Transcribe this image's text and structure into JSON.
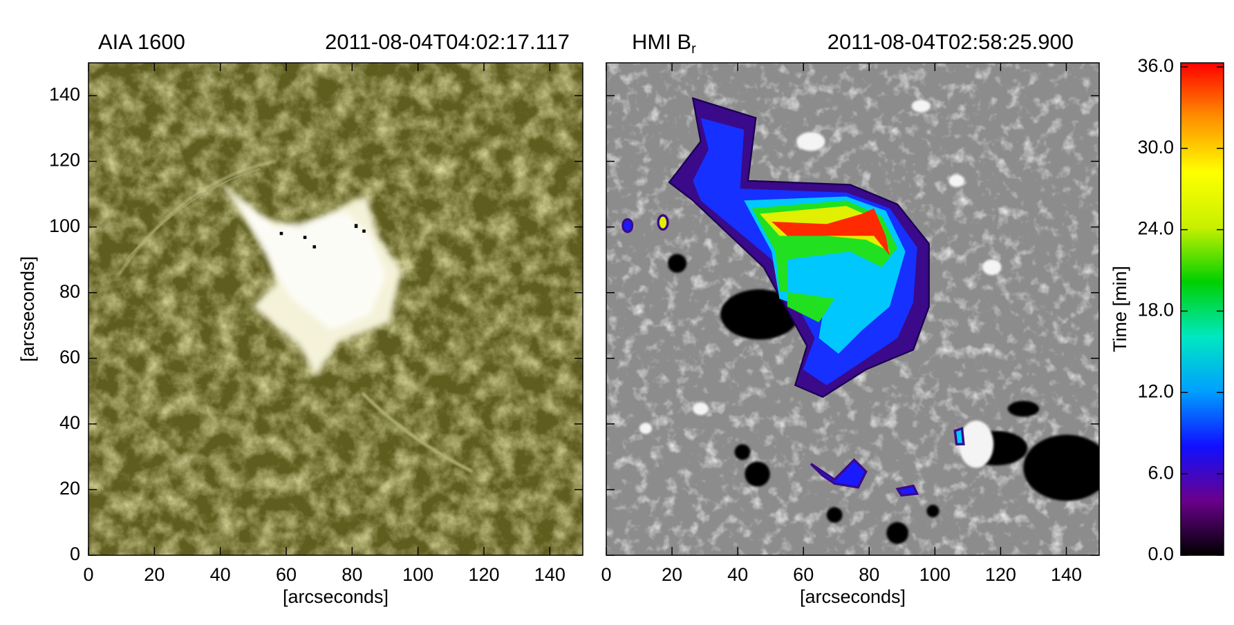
{
  "chart_data": [
    {
      "type": "image",
      "title": "AIA 1600",
      "subtitle": "2011-08-04T04:02:17.117",
      "xlabel": "[arcseconds]",
      "ylabel": "[arcseconds]",
      "xlim": [
        0,
        150
      ],
      "ylim": [
        0,
        150
      ],
      "xticks": [
        0,
        20,
        40,
        60,
        80,
        100,
        120,
        140
      ],
      "yticks": [
        0,
        20,
        40,
        60,
        80,
        100,
        120,
        140
      ],
      "ytick_labels": true
    },
    {
      "type": "image",
      "title": "HMI B",
      "title_subscript": "r",
      "subtitle": "2011-08-04T02:58:25.900",
      "xlabel": "[arcseconds]",
      "xlim": [
        0,
        150
      ],
      "ylim": [
        0,
        150
      ],
      "xticks": [
        0,
        20,
        40,
        60,
        80,
        100,
        120,
        140
      ],
      "yticks": [
        0,
        20,
        40,
        60,
        80,
        100,
        120,
        140
      ],
      "ytick_labels": false
    },
    {
      "type": "colorbar",
      "ylabel": "Time [min]",
      "ylim": [
        0,
        36.3
      ],
      "yticks": [
        {
          "value": 0,
          "label": "0.0"
        },
        {
          "value": 6,
          "label": "6.0"
        },
        {
          "value": 12,
          "label": "12.0"
        },
        {
          "value": 18,
          "label": "18.0"
        },
        {
          "value": 24,
          "label": "24.0"
        },
        {
          "value": 30,
          "label": "30.0"
        },
        {
          "value": 36,
          "label": "36.0"
        }
      ],
      "colors": [
        "#000000",
        "#6a008c",
        "#1010ff",
        "#00a0ff",
        "#00e8c0",
        "#00d000",
        "#c8f000",
        "#ffff00",
        "#ff9000",
        "#ff0000"
      ]
    }
  ]
}
